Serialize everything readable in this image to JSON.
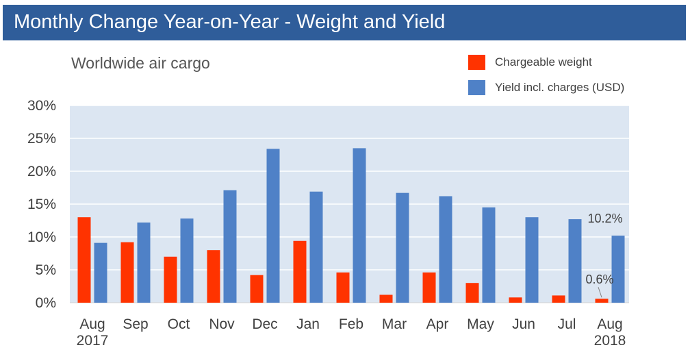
{
  "header": {
    "title": "Monthly Change Year-on-Year - Weight and Yield"
  },
  "colors": {
    "header_bg": "#2f5d9a",
    "plot_bg": "#dce6f2",
    "chargeable_weight": "#ff3300",
    "yield": "#4f81c7"
  },
  "chart_data": {
    "type": "bar",
    "title": "Worldwide air cargo",
    "xlabel": "",
    "ylabel": "",
    "categories": [
      "Aug",
      "Sep",
      "Oct",
      "Nov",
      "Dec",
      "Jan",
      "Feb",
      "Mar",
      "Apr",
      "May",
      "Jun",
      "Jul",
      "Aug"
    ],
    "category_sublabels": [
      "2017",
      "",
      "",
      "",
      "",
      "",
      "",
      "",
      "",
      "",
      "",
      "",
      "2018"
    ],
    "series": [
      {
        "name": "Chargeable weight",
        "color": "#ff3300",
        "values": [
          13.0,
          9.2,
          7.0,
          8.0,
          4.2,
          9.4,
          4.6,
          1.2,
          4.6,
          3.0,
          0.8,
          1.1,
          0.6
        ]
      },
      {
        "name": "Yield incl. charges (USD)",
        "color": "#4f81c7",
        "values": [
          9.1,
          12.2,
          12.8,
          17.1,
          23.4,
          16.9,
          23.5,
          16.7,
          16.2,
          14.5,
          13.0,
          12.7,
          10.2
        ]
      }
    ],
    "ylim": [
      0,
      30
    ],
    "yticks": [
      0,
      5,
      10,
      15,
      20,
      25,
      30
    ],
    "ytick_labels": [
      "0%",
      "5%",
      "10%",
      "15%",
      "20%",
      "25%",
      "30%"
    ],
    "grid": true,
    "legend_position": "top-right",
    "annotations": [
      {
        "text": "10.2%",
        "series": 1,
        "index": 12
      },
      {
        "text": "0.6%",
        "series": 0,
        "index": 12
      }
    ]
  }
}
